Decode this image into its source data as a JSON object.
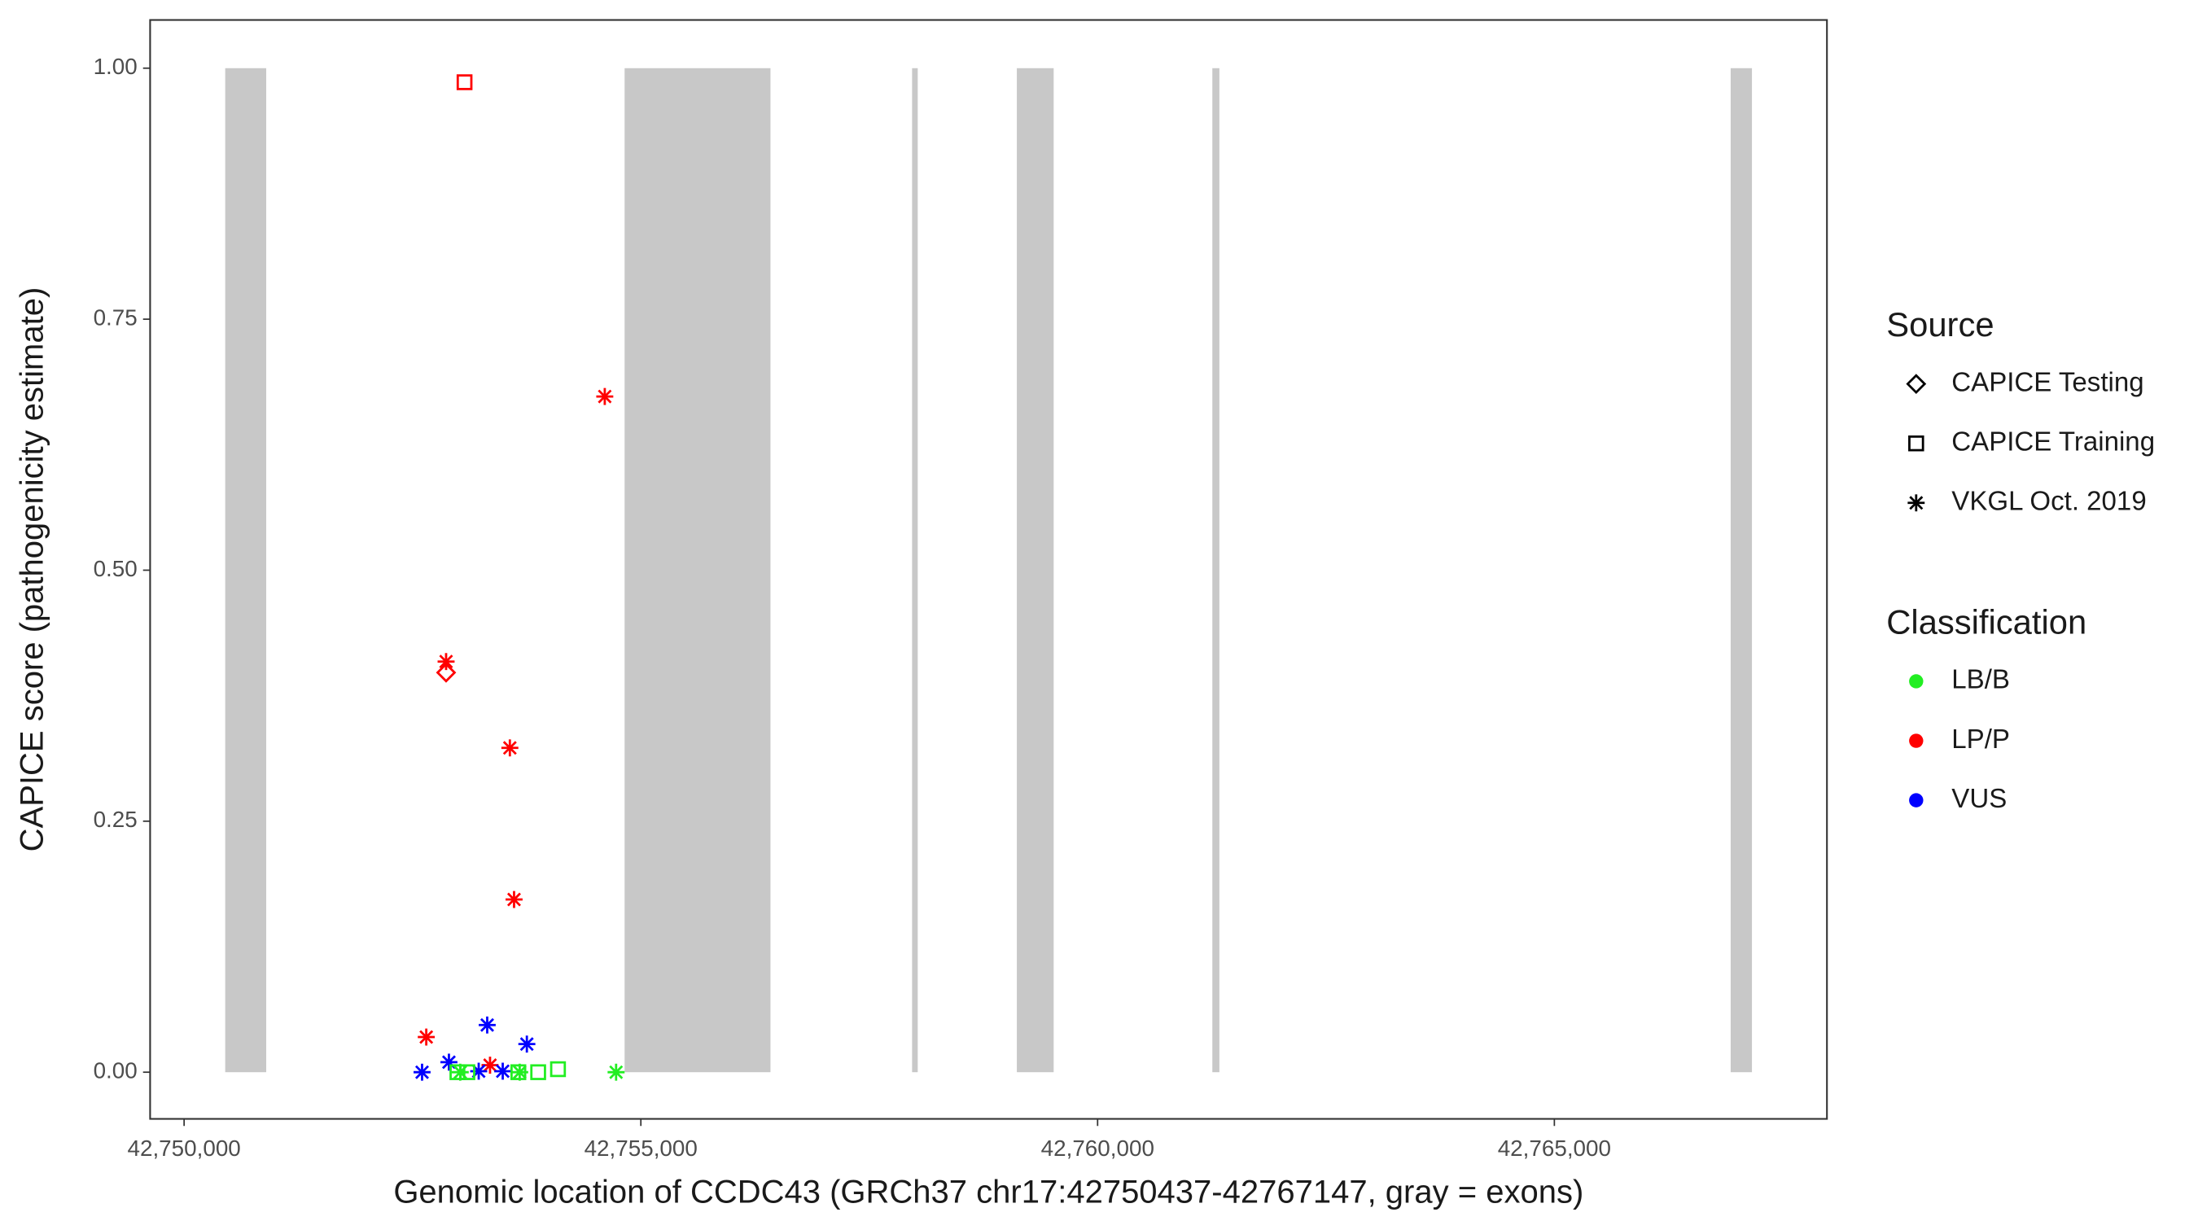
{
  "chart_data": {
    "type": "scatter",
    "x_label": "Genomic location of CCDC43 (GRCh37 chr17:42750437-42767147, gray = exons)",
    "y_label": "CAPICE score (pathogenicity estimate)",
    "xlim": [
      42749628,
      42767984
    ],
    "ylim": [
      -0.0465,
      1.048
    ],
    "xticks": [
      {
        "value": 42750000,
        "label": "42,750,000"
      },
      {
        "value": 42755000,
        "label": "42,755,000"
      },
      {
        "value": 42760000,
        "label": "42,760,000"
      },
      {
        "value": 42765000,
        "label": "42,765,000"
      }
    ],
    "yticks": [
      {
        "value": 0,
        "label": "0.00"
      },
      {
        "value": 0.25,
        "label": "0.25"
      },
      {
        "value": 0.5,
        "label": "0.50"
      },
      {
        "value": 0.75,
        "label": "0.75"
      },
      {
        "value": 1,
        "label": "1.00"
      }
    ],
    "exon_color": "#c8c8c8",
    "exons": [
      [
        42750450,
        42750899
      ],
      [
        42754822,
        42756419
      ],
      [
        42757969,
        42758031
      ],
      [
        42759116,
        42759519
      ],
      [
        42761256,
        42761333
      ],
      [
        42766930,
        42767163
      ]
    ],
    "source_legend": {
      "title": "Source",
      "items": [
        {
          "name": "CAPICE Testing",
          "shape": "diamond"
        },
        {
          "name": "CAPICE Training",
          "shape": "square"
        },
        {
          "name": "VKGL Oct. 2019",
          "shape": "asterisk"
        }
      ]
    },
    "classification_legend": {
      "title": "Classification",
      "items": [
        {
          "name": "LB/B",
          "color": "#22ee22"
        },
        {
          "name": "LP/P",
          "color": "#ff0000"
        },
        {
          "name": "VUS",
          "color": "#0000ff"
        }
      ]
    },
    "series": [
      {
        "source": 2,
        "classification": 1,
        "x": [
          42754605,
          42752868,
          42753566,
          42753612,
          42752651,
          42753349
        ],
        "y": [
          0.673,
          0.409,
          0.323,
          0.172,
          0.035,
          0.007
        ]
      },
      {
        "source": 0,
        "classification": 1,
        "x": [
          42752868
        ],
        "y": [
          0.398
        ]
      },
      {
        "source": 1,
        "classification": 1,
        "x": [
          42753070
        ],
        "y": [
          0.986
        ]
      },
      {
        "source": 2,
        "classification": 2,
        "x": [
          42752605,
          42752899,
          42753318,
          42753225,
          42753488,
          42753752
        ],
        "y": [
          0,
          0.01,
          0.047,
          0.001,
          0.001,
          0.028
        ]
      },
      {
        "source": 2,
        "classification": 0,
        "x": [
          42754729,
          42753674,
          42753023
        ],
        "y": [
          0,
          0,
          0
        ]
      },
      {
        "source": 1,
        "classification": 0,
        "x": [
          42752992,
          42753101,
          42753876,
          42754093,
          42753659
        ],
        "y": [
          0,
          0,
          0,
          0.003,
          0
        ]
      }
    ]
  }
}
